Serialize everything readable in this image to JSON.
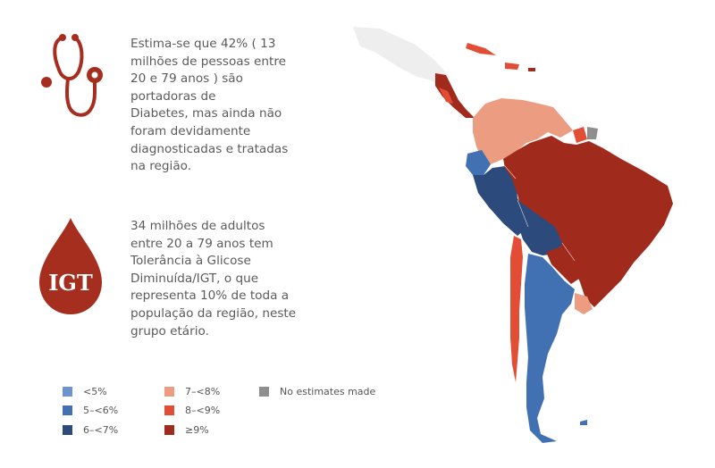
{
  "stat_1": {
    "lines": [
      "Estima-se que 42% ( 13",
      "milhões de pessoas entre",
      "20 e 79 anos ) são",
      "portadoras de",
      "Diabetes, mas ainda não",
      "foram devidamente",
      "diagnosticadas e tratadas",
      "na região."
    ],
    "icon": "stethoscope-icon"
  },
  "stat_2": {
    "lines": [
      "34 milhões de adultos",
      "entre 20 a 79 anos tem",
      "Tolerância à Glicose",
      "Diminuída/IGT, o que",
      "representa 10% de toda a",
      "população da região, neste",
      "grupo etário."
    ],
    "icon": "blood-drop-icon",
    "icon_label": "IGT"
  },
  "legend": {
    "items": [
      {
        "label": "<5%",
        "color": "#6f93cf"
      },
      {
        "label": "5–<6%",
        "color": "#4271b3"
      },
      {
        "label": "6–<7%",
        "color": "#2c4a7c"
      },
      {
        "label": "7–<8%",
        "color": "#ec9c80"
      },
      {
        "label": "8–<9%",
        "color": "#e24e35"
      },
      {
        "label": "≥9%",
        "color": "#a02b1c"
      },
      {
        "label": "No estimates made",
        "color": "#8e8e8e"
      }
    ]
  },
  "colors": {
    "accent": "#a62e1f",
    "text": "#5b5b5b",
    "no_data": "#8e8e8e",
    "outside_region": "#eeeeee"
  }
}
